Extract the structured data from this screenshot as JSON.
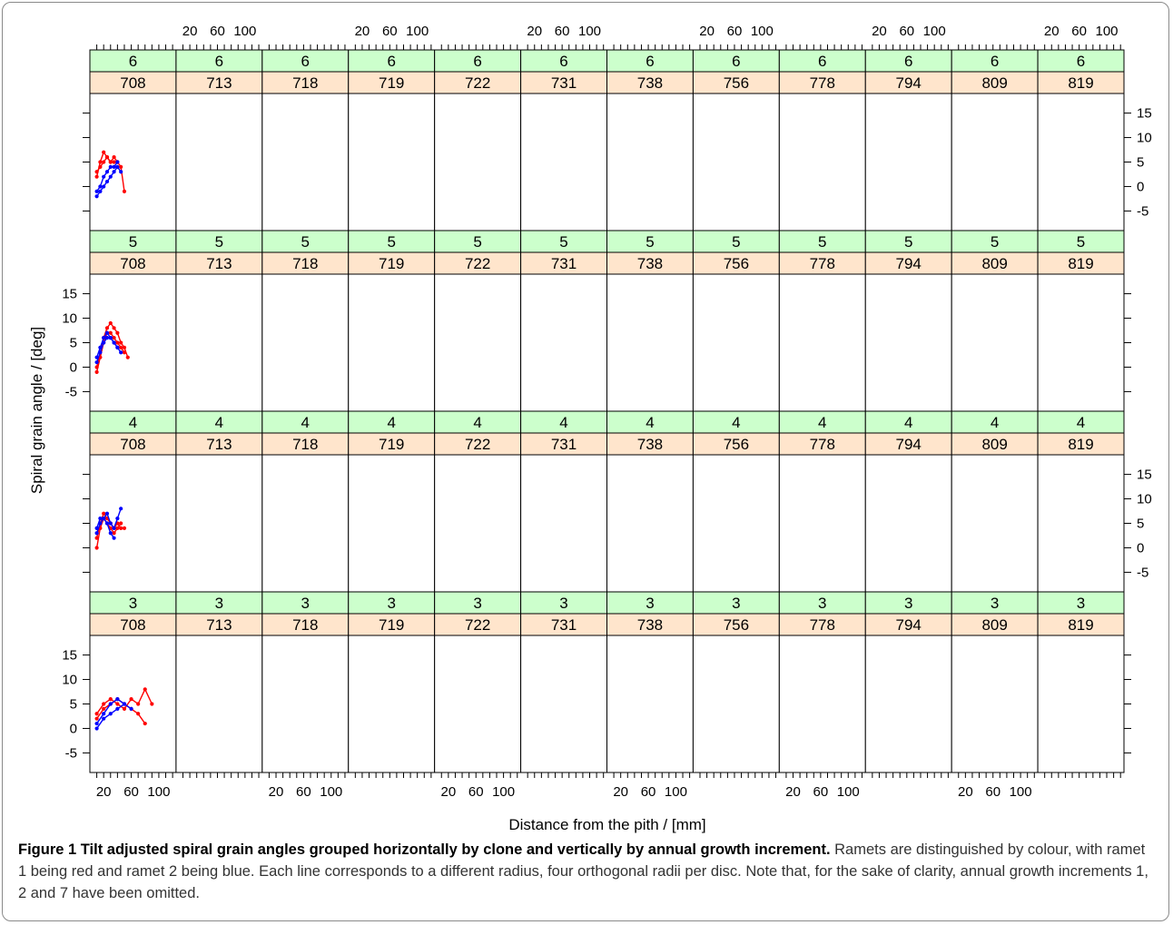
{
  "chart_data": {
    "type": "line",
    "title": "",
    "xlabel": "Distance from the pith / [mm]",
    "ylabel": "Spiral grain angle / [deg]",
    "xlim": [
      0,
      125
    ],
    "ylim": [
      -9,
      19
    ],
    "x_ticks": [
      20,
      60,
      100
    ],
    "y_ticks": [
      -5,
      0,
      5,
      10,
      15
    ],
    "grid": false,
    "clones": [
      "708",
      "713",
      "718",
      "719",
      "722",
      "731",
      "738",
      "756",
      "778",
      "794",
      "809",
      "819"
    ],
    "increments": [
      "6",
      "5",
      "4",
      "3"
    ],
    "colors": {
      "ramet1": "#ff0000",
      "ramet2": "#0000ff",
      "increment_strip": "#ccffcc",
      "clone_strip": "#ffe5cc"
    },
    "panels": [
      {
        "increment": "6",
        "clone": "708",
        "lines": [
          {
            "ramet": 1,
            "x": [
              10,
              15,
              20,
              25,
              30,
              35,
              40,
              45,
              50
            ],
            "y": [
              2,
              5,
              7,
              6,
              5,
              6,
              5,
              4,
              -1
            ]
          },
          {
            "ramet": 1,
            "x": [
              10,
              15,
              20,
              25,
              30,
              35,
              40
            ],
            "y": [
              3,
              4,
              5,
              6,
              5,
              5,
              5
            ]
          },
          {
            "ramet": 2,
            "x": [
              10,
              15,
              20,
              25,
              30,
              35,
              40,
              45
            ],
            "y": [
              -2,
              -1,
              0,
              1,
              2,
              3,
              4,
              3
            ]
          },
          {
            "ramet": 2,
            "x": [
              10,
              15,
              20,
              25,
              30,
              35,
              40
            ],
            "y": [
              -1,
              0,
              2,
              3,
              4,
              4,
              5
            ]
          }
        ]
      },
      {
        "increment": "5",
        "clone": "708",
        "lines": [
          {
            "ramet": 1,
            "x": [
              10,
              15,
              20,
              25,
              30,
              35,
              40,
              45,
              50,
              55
            ],
            "y": [
              0,
              3,
              6,
              8,
              9,
              8,
              7,
              5,
              4,
              2
            ]
          },
          {
            "ramet": 1,
            "x": [
              10,
              15,
              20,
              25,
              30,
              35,
              40,
              45,
              50
            ],
            "y": [
              -1,
              2,
              5,
              7,
              7,
              6,
              5,
              4,
              3
            ]
          },
          {
            "ramet": 2,
            "x": [
              10,
              15,
              20,
              25,
              30,
              35,
              40,
              45
            ],
            "y": [
              1,
              3,
              5,
              6,
              6,
              5,
              4,
              3
            ]
          },
          {
            "ramet": 2,
            "x": [
              10,
              15,
              20,
              25,
              30,
              35,
              40
            ],
            "y": [
              2,
              4,
              6,
              7,
              6,
              5,
              4
            ]
          }
        ]
      },
      {
        "increment": "4",
        "clone": "708",
        "lines": [
          {
            "ramet": 1,
            "x": [
              10,
              15,
              20,
              25,
              30,
              35,
              40,
              45,
              50
            ],
            "y": [
              2,
              5,
              7,
              6,
              5,
              4,
              5,
              4,
              4
            ]
          },
          {
            "ramet": 1,
            "x": [
              10,
              15,
              20,
              25,
              30,
              35,
              40,
              45
            ],
            "y": [
              0,
              4,
              6,
              5,
              4,
              3,
              4,
              5
            ]
          },
          {
            "ramet": 2,
            "x": [
              10,
              15,
              20,
              25,
              30,
              35,
              40,
              45
            ],
            "y": [
              3,
              5,
              6,
              7,
              5,
              4,
              6,
              8
            ]
          },
          {
            "ramet": 2,
            "x": [
              10,
              15,
              20,
              25,
              30,
              35
            ],
            "y": [
              4,
              6,
              6,
              5,
              3,
              2
            ]
          }
        ]
      },
      {
        "increment": "3",
        "clone": "708",
        "lines": [
          {
            "ramet": 1,
            "x": [
              10,
              20,
              30,
              40,
              50,
              60,
              70,
              80,
              90
            ],
            "y": [
              3,
              5,
              6,
              5,
              4,
              6,
              5,
              8,
              5
            ]
          },
          {
            "ramet": 1,
            "x": [
              10,
              20,
              30,
              40,
              50,
              60,
              70,
              80
            ],
            "y": [
              2,
              4,
              5,
              6,
              5,
              4,
              3,
              1
            ]
          },
          {
            "ramet": 2,
            "x": [
              10,
              20,
              30,
              40,
              50,
              60
            ],
            "y": [
              0,
              2,
              3,
              4,
              5,
              4
            ]
          },
          {
            "ramet": 2,
            "x": [
              10,
              20,
              30,
              40,
              50
            ],
            "y": [
              1,
              3,
              5,
              6,
              5
            ]
          }
        ]
      }
    ]
  },
  "caption": {
    "label": "Figure 1 Tilt adjusted spiral grain angles grouped horizontally by clone and vertically by annual growth increment.",
    "text": "Ramets are distinguished by colour, with ramet 1 being red and ramet 2 being blue. Each line corresponds to a different radius, four orthogonal radii per disc. Note that, for the sake of clarity, annual growth increments 1, 2 and 7 have been omitted."
  }
}
